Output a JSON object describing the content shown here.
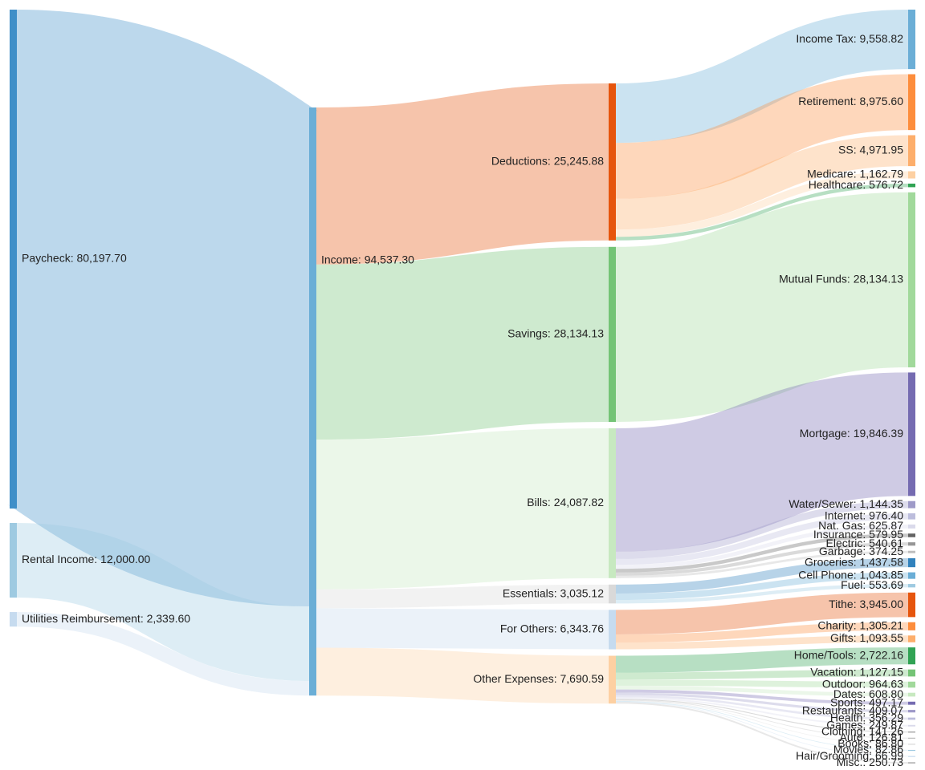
{
  "chart_data": {
    "type": "sankey",
    "nodes": [
      {
        "id": "paycheck",
        "label": "Paycheck: 80,197.70",
        "value": 80197.7,
        "column": 0,
        "color": "#3f8fc8"
      },
      {
        "id": "rental",
        "label": "Rental Income: 12,000.00",
        "value": 12000.0,
        "column": 0,
        "color": "#9ecae1"
      },
      {
        "id": "utilities",
        "label": "Utilities Reimbursement: 2,339.60",
        "value": 2339.6,
        "column": 0,
        "color": "#c6dbef"
      },
      {
        "id": "income",
        "label": "Income: 94,537.30",
        "value": 94537.3,
        "column": 1,
        "color": "#6baed6"
      },
      {
        "id": "deductions",
        "label": "Deductions: 25,245.88",
        "value": 25245.88,
        "column": 2,
        "color": "#e6550d"
      },
      {
        "id": "savings",
        "label": "Savings: 28,134.13",
        "value": 28134.13,
        "column": 2,
        "color": "#74c476"
      },
      {
        "id": "bills",
        "label": "Bills: 24,087.82",
        "value": 24087.82,
        "column": 2,
        "color": "#c7e9c0"
      },
      {
        "id": "essentials",
        "label": "Essentials: 3,035.12",
        "value": 3035.12,
        "column": 2,
        "color": "#d9d9d9"
      },
      {
        "id": "others",
        "label": "For Others: 6,343.76",
        "value": 6343.76,
        "column": 2,
        "color": "#c6dbef"
      },
      {
        "id": "other_exp",
        "label": "Other Expenses: 7,690.59",
        "value": 7690.59,
        "column": 2,
        "color": "#fdd0a2"
      },
      {
        "id": "income_tax",
        "label": "Income Tax: 9,558.82",
        "value": 9558.82,
        "column": 3,
        "color": "#6baed6"
      },
      {
        "id": "retirement",
        "label": "Retirement: 8,975.60",
        "value": 8975.6,
        "column": 3,
        "color": "#fd8d3c"
      },
      {
        "id": "ss",
        "label": "SS: 4,971.95",
        "value": 4971.95,
        "column": 3,
        "color": "#fdae6b"
      },
      {
        "id": "medicare",
        "label": "Medicare: 1,162.79",
        "value": 1162.79,
        "column": 3,
        "color": "#fdd0a2"
      },
      {
        "id": "healthcare",
        "label": "Healthcare: 576.72",
        "value": 576.72,
        "column": 3,
        "color": "#31a354"
      },
      {
        "id": "mutual_funds",
        "label": "Mutual Funds: 28,134.13",
        "value": 28134.13,
        "column": 3,
        "color": "#a1d99b"
      },
      {
        "id": "mortgage",
        "label": "Mortgage: 19,846.39",
        "value": 19846.39,
        "column": 3,
        "color": "#756bb1"
      },
      {
        "id": "water",
        "label": "Water/Sewer: 1,144.35",
        "value": 1144.35,
        "column": 3,
        "color": "#9e9ac8"
      },
      {
        "id": "internet",
        "label": "Internet: 976.40",
        "value": 976.4,
        "column": 3,
        "color": "#bcbddc"
      },
      {
        "id": "natgas",
        "label": "Nat. Gas: 625.87",
        "value": 625.87,
        "column": 3,
        "color": "#dadaeb"
      },
      {
        "id": "insurance",
        "label": "Insurance: 579.95",
        "value": 579.95,
        "column": 3,
        "color": "#636363"
      },
      {
        "id": "electric",
        "label": "Electric: 540.61",
        "value": 540.61,
        "column": 3,
        "color": "#969696"
      },
      {
        "id": "garbage",
        "label": "Garbage: 374.25",
        "value": 374.25,
        "column": 3,
        "color": "#bdbdbd"
      },
      {
        "id": "groceries",
        "label": "Groceries: 1,437.58",
        "value": 1437.58,
        "column": 3,
        "color": "#3182bd"
      },
      {
        "id": "cellphone",
        "label": "Cell Phone: 1,043.85",
        "value": 1043.85,
        "column": 3,
        "color": "#6baed6"
      },
      {
        "id": "fuel",
        "label": "Fuel: 553.69",
        "value": 553.69,
        "column": 3,
        "color": "#9ecae1"
      },
      {
        "id": "tithe",
        "label": "Tithe: 3,945.00",
        "value": 3945.0,
        "column": 3,
        "color": "#e6550d"
      },
      {
        "id": "charity",
        "label": "Charity: 1,305.21",
        "value": 1305.21,
        "column": 3,
        "color": "#fd8d3c"
      },
      {
        "id": "gifts",
        "label": "Gifts: 1,093.55",
        "value": 1093.55,
        "column": 3,
        "color": "#fdae6b"
      },
      {
        "id": "hometools",
        "label": "Home/Tools: 2,722.16",
        "value": 2722.16,
        "column": 3,
        "color": "#31a354"
      },
      {
        "id": "vacation",
        "label": "Vacation: 1,127.15",
        "value": 1127.15,
        "column": 3,
        "color": "#74c476"
      },
      {
        "id": "outdoor",
        "label": "Outdoor: 964.63",
        "value": 964.63,
        "column": 3,
        "color": "#a1d99b"
      },
      {
        "id": "dates",
        "label": "Dates: 608.80",
        "value": 608.8,
        "column": 3,
        "color": "#c7e9c0"
      },
      {
        "id": "sports",
        "label": "Sports: 497.17",
        "value": 497.17,
        "column": 3,
        "color": "#756bb1"
      },
      {
        "id": "restaurants",
        "label": "Restaurants: 409.07",
        "value": 409.07,
        "column": 3,
        "color": "#9e9ac8"
      },
      {
        "id": "health",
        "label": "Health: 356.29",
        "value": 356.29,
        "column": 3,
        "color": "#bcbddc"
      },
      {
        "id": "games",
        "label": "Games: 249.87",
        "value": 249.87,
        "column": 3,
        "color": "#dadaeb"
      },
      {
        "id": "clothing",
        "label": "Clothing: 141.26",
        "value": 141.26,
        "column": 3,
        "color": "#969696"
      },
      {
        "id": "auto",
        "label": "Auto: 126.81",
        "value": 126.81,
        "column": 3,
        "color": "#bdbdbd"
      },
      {
        "id": "books",
        "label": "Books: 86.80",
        "value": 86.8,
        "column": 3,
        "color": "#d9d9d9"
      },
      {
        "id": "movies",
        "label": "Movies: 82.86",
        "value": 82.86,
        "column": 3,
        "color": "#9ecae1"
      },
      {
        "id": "hair",
        "label": "Hair/Grooming: 66.99",
        "value": 66.99,
        "column": 3,
        "color": "#c6dbef"
      },
      {
        "id": "misc",
        "label": "Misc.: 250.73",
        "value": 250.73,
        "column": 3,
        "color": "#bdbdbd"
      }
    ],
    "links": [
      {
        "source": "paycheck",
        "target": "income",
        "value": 80197.7
      },
      {
        "source": "rental",
        "target": "income",
        "value": 12000.0
      },
      {
        "source": "utilities",
        "target": "income",
        "value": 2339.6
      },
      {
        "source": "income",
        "target": "deductions",
        "value": 25245.88
      },
      {
        "source": "income",
        "target": "savings",
        "value": 28134.13
      },
      {
        "source": "income",
        "target": "bills",
        "value": 24087.82
      },
      {
        "source": "income",
        "target": "essentials",
        "value": 3035.12
      },
      {
        "source": "income",
        "target": "others",
        "value": 6343.76
      },
      {
        "source": "income",
        "target": "other_exp",
        "value": 7690.59
      },
      {
        "source": "deductions",
        "target": "income_tax",
        "value": 9558.82
      },
      {
        "source": "deductions",
        "target": "retirement",
        "value": 8975.6
      },
      {
        "source": "deductions",
        "target": "ss",
        "value": 4971.95
      },
      {
        "source": "deductions",
        "target": "medicare",
        "value": 1162.79
      },
      {
        "source": "deductions",
        "target": "healthcare",
        "value": 576.72
      },
      {
        "source": "savings",
        "target": "mutual_funds",
        "value": 28134.13
      },
      {
        "source": "bills",
        "target": "mortgage",
        "value": 19846.39
      },
      {
        "source": "bills",
        "target": "water",
        "value": 1144.35
      },
      {
        "source": "bills",
        "target": "internet",
        "value": 976.4
      },
      {
        "source": "bills",
        "target": "natgas",
        "value": 625.87
      },
      {
        "source": "bills",
        "target": "insurance",
        "value": 579.95
      },
      {
        "source": "bills",
        "target": "electric",
        "value": 540.61
      },
      {
        "source": "bills",
        "target": "garbage",
        "value": 374.25
      },
      {
        "source": "essentials",
        "target": "groceries",
        "value": 1437.58
      },
      {
        "source": "essentials",
        "target": "cellphone",
        "value": 1043.85
      },
      {
        "source": "essentials",
        "target": "fuel",
        "value": 553.69
      },
      {
        "source": "others",
        "target": "tithe",
        "value": 3945.0
      },
      {
        "source": "others",
        "target": "charity",
        "value": 1305.21
      },
      {
        "source": "others",
        "target": "gifts",
        "value": 1093.55
      },
      {
        "source": "other_exp",
        "target": "hometools",
        "value": 2722.16
      },
      {
        "source": "other_exp",
        "target": "vacation",
        "value": 1127.15
      },
      {
        "source": "other_exp",
        "target": "outdoor",
        "value": 964.63
      },
      {
        "source": "other_exp",
        "target": "dates",
        "value": 608.8
      },
      {
        "source": "other_exp",
        "target": "sports",
        "value": 497.17
      },
      {
        "source": "other_exp",
        "target": "restaurants",
        "value": 409.07
      },
      {
        "source": "other_exp",
        "target": "health",
        "value": 356.29
      },
      {
        "source": "other_exp",
        "target": "games",
        "value": 249.87
      },
      {
        "source": "other_exp",
        "target": "clothing",
        "value": 141.26
      },
      {
        "source": "other_exp",
        "target": "auto",
        "value": 126.81
      },
      {
        "source": "other_exp",
        "target": "books",
        "value": 86.8
      },
      {
        "source": "other_exp",
        "target": "movies",
        "value": 82.86
      },
      {
        "source": "other_exp",
        "target": "hair",
        "value": 66.99
      },
      {
        "source": "other_exp",
        "target": "misc",
        "value": 250.73
      }
    ]
  }
}
